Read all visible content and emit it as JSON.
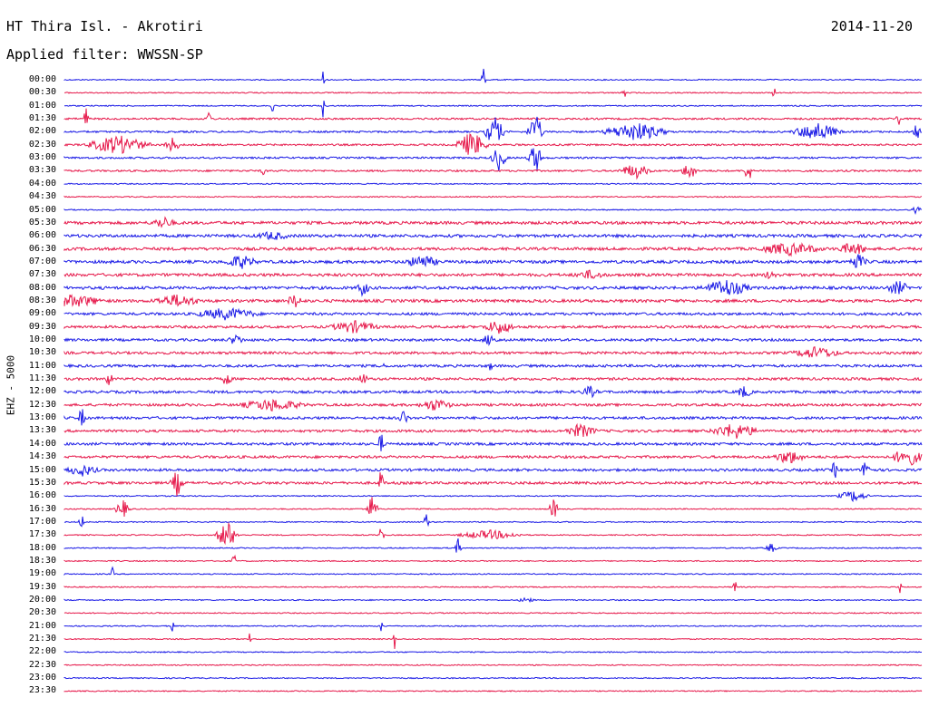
{
  "header": {
    "station": "HT Thira Isl. - Akrotiri",
    "date": "2014-11-20",
    "filter": "Applied filter: WWSSN-SP",
    "channel": "EHZ - 5000"
  },
  "colors": {
    "blue": "#1a1ae6",
    "red": "#e6194b",
    "background": "#ffffff"
  },
  "hours": [
    "00:00",
    "00:30",
    "01:00",
    "01:30",
    "02:00",
    "02:30",
    "03:00",
    "03:30",
    "04:00",
    "04:30",
    "05:00",
    "05:30",
    "06:00",
    "06:30",
    "07:00",
    "07:30",
    "08:00",
    "08:30",
    "09:00",
    "09:30",
    "10:00",
    "10:30",
    "11:00",
    "11:30",
    "12:00",
    "12:30",
    "13:00",
    "13:30",
    "14:00",
    "14:30",
    "15:00",
    "15:30",
    "16:00",
    "16:30",
    "17:00",
    "17:30",
    "18:00",
    "18:30",
    "19:00",
    "19:30",
    "20:00",
    "20:30",
    "21:00",
    "21:30",
    "22:00",
    "22:30",
    "23:00",
    "23:30"
  ]
}
